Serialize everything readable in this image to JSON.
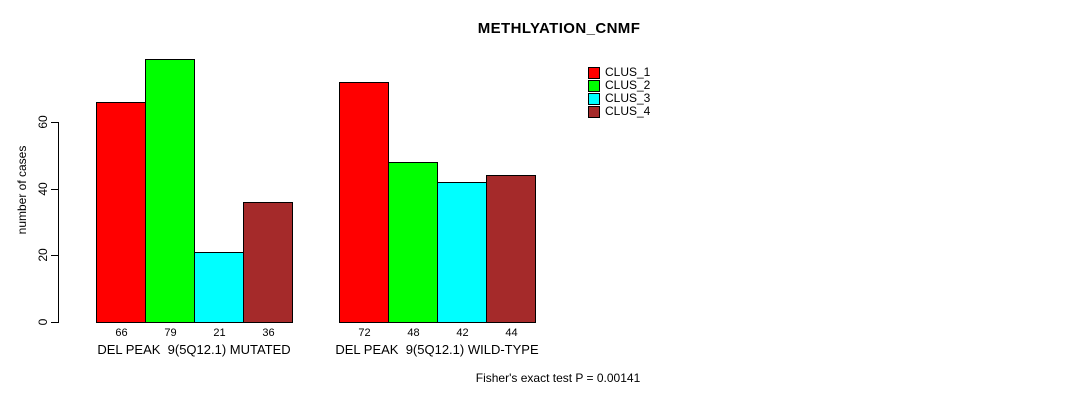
{
  "chart_data": {
    "type": "bar",
    "title": "METHLYATION_CNMF",
    "ylabel": "number of cases",
    "xlabel": "",
    "categories": [
      "DEL PEAK  9(5Q12.1) MUTATED",
      "DEL PEAK  9(5Q12.1) WILD-TYPE"
    ],
    "series": [
      {
        "name": "CLUS_1",
        "color": "#ff0000",
        "values": [
          66,
          72
        ]
      },
      {
        "name": "CLUS_2",
        "color": "#00ff00",
        "values": [
          79,
          48
        ]
      },
      {
        "name": "CLUS_3",
        "color": "#00ffff",
        "values": [
          21,
          42
        ]
      },
      {
        "name": "CLUS_4",
        "color": "#a52a2a",
        "values": [
          36,
          44
        ]
      }
    ],
    "bar_value_labels": [
      [
        66,
        79,
        21,
        36
      ],
      [
        72,
        48,
        42,
        44
      ]
    ],
    "yticks": [
      0,
      20,
      40,
      60
    ],
    "ylim": [
      0,
      82
    ],
    "grid": false,
    "legend_position": "top-right",
    "legend_entries": [
      "CLUS_1",
      "CLUS_2",
      "CLUS_3",
      "CLUS_4"
    ],
    "annotation": "Fisher's exact test P = 0.00141",
    "axis_color": "#000000",
    "bar_border_color": "#000000"
  }
}
